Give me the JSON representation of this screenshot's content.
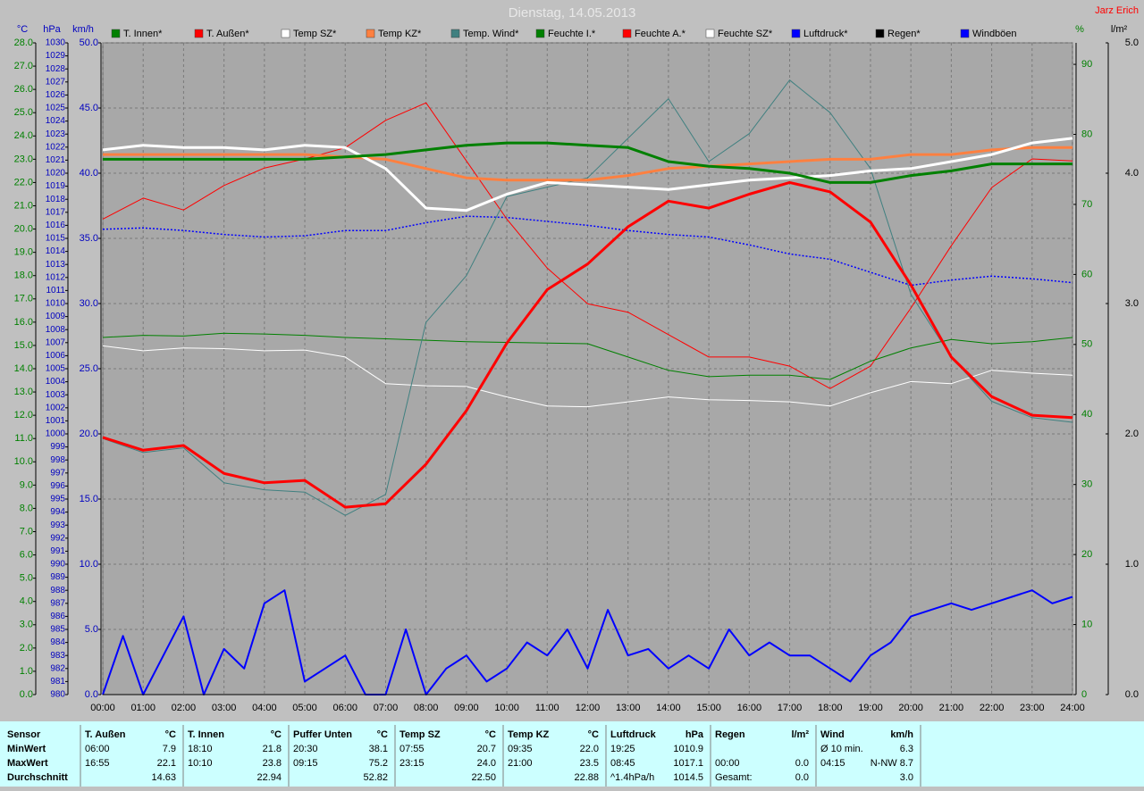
{
  "chart_data": {
    "type": "line",
    "title": "Dienstag, 14.05.2013",
    "author": "Jarz Erich",
    "x": [
      0,
      1,
      2,
      3,
      4,
      5,
      6,
      7,
      8,
      9,
      10,
      11,
      12,
      13,
      14,
      15,
      16,
      17,
      18,
      19,
      20,
      21,
      22,
      23,
      24
    ],
    "xlim": [
      0,
      24
    ],
    "xticks": [
      {
        "value": 0,
        "label": "00:00"
      },
      {
        "value": 1,
        "label": "01:00"
      },
      {
        "value": 2,
        "label": "02:00"
      },
      {
        "value": 3,
        "label": "03:00"
      },
      {
        "value": 4,
        "label": "04:00"
      },
      {
        "value": 5,
        "label": "05:00"
      },
      {
        "value": 6,
        "label": "06:00"
      },
      {
        "value": 7,
        "label": "07:00"
      },
      {
        "value": 8,
        "label": "08:00"
      },
      {
        "value": 9,
        "label": "09:00"
      },
      {
        "value": 10,
        "label": "10:00"
      },
      {
        "value": 11,
        "label": "11:00"
      },
      {
        "value": 12,
        "label": "12:00"
      },
      {
        "value": 13,
        "label": "13:00"
      },
      {
        "value": 14,
        "label": "14:00"
      },
      {
        "value": 15,
        "label": "15:00"
      },
      {
        "value": 16,
        "label": "16:00"
      },
      {
        "value": 17,
        "label": "17:00"
      },
      {
        "value": 18,
        "label": "18:00"
      },
      {
        "value": 19,
        "label": "19:00"
      },
      {
        "value": 20,
        "label": "20:00"
      },
      {
        "value": 21,
        "label": "21:00"
      },
      {
        "value": 22,
        "label": "22:00"
      },
      {
        "value": 23,
        "label": "23:00"
      },
      {
        "value": 24,
        "label": "24:00"
      }
    ],
    "ylabel": "°C",
    "ylim": [
      0,
      28
    ],
    "yticks": [
      {
        "value": 0,
        "label": "0.0"
      },
      {
        "value": 1,
        "label": "1.0"
      },
      {
        "value": 2,
        "label": "2.0"
      },
      {
        "value": 3,
        "label": "3.0"
      },
      {
        "value": 4,
        "label": "4.0"
      },
      {
        "value": 5,
        "label": "5.0"
      },
      {
        "value": 6,
        "label": "6.0"
      },
      {
        "value": 7,
        "label": "7.0"
      },
      {
        "value": 8,
        "label": "8.0"
      },
      {
        "value": 9,
        "label": "9.0"
      },
      {
        "value": 10,
        "label": "10.0"
      },
      {
        "value": 11,
        "label": "11.0"
      },
      {
        "value": 12,
        "label": "12.0"
      },
      {
        "value": 13,
        "label": "13.0"
      },
      {
        "value": 14,
        "label": "14.0"
      },
      {
        "value": 15,
        "label": "15.0"
      },
      {
        "value": 16,
        "label": "16.0"
      },
      {
        "value": 17,
        "label": "17.0"
      },
      {
        "value": 18,
        "label": "18.0"
      },
      {
        "value": 19,
        "label": "19.0"
      },
      {
        "value": 20,
        "label": "20.0"
      },
      {
        "value": 21,
        "label": "21.0"
      },
      {
        "value": 22,
        "label": "22.0"
      },
      {
        "value": 23,
        "label": "23.0"
      },
      {
        "value": 24,
        "label": "24.0"
      },
      {
        "value": 25,
        "label": "25.0"
      },
      {
        "value": 26,
        "label": "26.0"
      },
      {
        "value": 27,
        "label": "27.0"
      },
      {
        "value": 28,
        "label": "28.0"
      }
    ],
    "y2label": "hPa",
    "y2lim": [
      980,
      1030
    ],
    "y2ticks": [
      980,
      981,
      982,
      983,
      984,
      985,
      986,
      987,
      988,
      989,
      990,
      991,
      992,
      993,
      994,
      995,
      996,
      997,
      998,
      999,
      1000,
      1001,
      1002,
      1003,
      1004,
      1005,
      1006,
      1007,
      1008,
      1009,
      1010,
      1011,
      1012,
      1013,
      1014,
      1015,
      1016,
      1017,
      1018,
      1019,
      1020,
      1021,
      1022,
      1023,
      1024,
      1025,
      1026,
      1027,
      1028,
      1029,
      1030
    ],
    "y3label": "km/h",
    "y3lim": [
      0,
      50
    ],
    "y3ticks": [
      {
        "value": 0,
        "label": "0.0"
      },
      {
        "value": 5,
        "label": "5.0"
      },
      {
        "value": 10,
        "label": "10.0"
      },
      {
        "value": 15,
        "label": "15.0"
      },
      {
        "value": 20,
        "label": "20.0"
      },
      {
        "value": 25,
        "label": "25.0"
      },
      {
        "value": 30,
        "label": "30.0"
      },
      {
        "value": 35,
        "label": "35.0"
      },
      {
        "value": 40,
        "label": "40.0"
      },
      {
        "value": 45,
        "label": "45.0"
      },
      {
        "value": 50,
        "label": "50.0"
      }
    ],
    "y4label": "%",
    "y4lim": [
      0,
      93.07
    ],
    "y4ticks": [
      0,
      10,
      20,
      30,
      40,
      50,
      60,
      70,
      80,
      90
    ],
    "y5label": "l/m²",
    "y5lim": [
      0,
      5
    ],
    "y5ticks": [
      {
        "value": 0,
        "label": "0.0"
      },
      {
        "value": 1,
        "label": "1.0"
      },
      {
        "value": 2,
        "label": "2.0"
      },
      {
        "value": 3,
        "label": "3.0"
      },
      {
        "value": 4,
        "label": "4.0"
      },
      {
        "value": 5,
        "label": "5.0"
      }
    ],
    "grid": true,
    "series": [
      {
        "name": "T. Innen*",
        "color": "#008000",
        "axis": "y",
        "line_width": 3,
        "values": [
          23.0,
          23.0,
          23.0,
          23.0,
          23.0,
          23.0,
          23.1,
          23.2,
          23.4,
          23.6,
          23.7,
          23.7,
          23.6,
          23.5,
          22.9,
          22.7,
          22.6,
          22.4,
          22.0,
          22.0,
          22.3,
          22.5,
          22.8,
          22.8,
          22.8
        ]
      },
      {
        "name": "T. Außen*",
        "color": "#ff0000",
        "axis": "y",
        "line_width": 3,
        "values": [
          11.05,
          10.5,
          10.7,
          9.5,
          9.1,
          9.2,
          8.05,
          8.2,
          9.9,
          12.2,
          15.1,
          17.4,
          18.5,
          20.1,
          21.2,
          20.9,
          21.5,
          22.0,
          21.6,
          20.3,
          17.6,
          14.5,
          12.8,
          12.0,
          11.9
        ]
      },
      {
        "name": "Temp SZ*",
        "color": "#ffffff",
        "axis": "y",
        "line_width": 3,
        "values": [
          23.4,
          23.6,
          23.5,
          23.5,
          23.4,
          23.6,
          23.5,
          22.6,
          20.9,
          20.8,
          21.5,
          22.0,
          21.9,
          21.8,
          21.7,
          21.9,
          22.1,
          22.2,
          22.3,
          22.5,
          22.6,
          22.9,
          23.2,
          23.7,
          23.9
        ]
      },
      {
        "name": "Temp KZ*",
        "color": "#ff8040",
        "axis": "y",
        "line_width": 3,
        "values": [
          23.2,
          23.2,
          23.2,
          23.2,
          23.2,
          23.2,
          23.1,
          23.0,
          22.6,
          22.2,
          22.1,
          22.1,
          22.1,
          22.3,
          22.6,
          22.7,
          22.8,
          22.9,
          23.0,
          23.0,
          23.2,
          23.2,
          23.4,
          23.5,
          23.5
        ]
      },
      {
        "name": "Temp. Wind*",
        "color": "#408080",
        "axis": "y",
        "line_width": 1,
        "values": [
          11.0,
          10.4,
          10.6,
          9.1,
          8.8,
          8.7,
          7.7,
          8.6,
          16.0,
          18.0,
          21.4,
          21.8,
          22.2,
          23.9,
          25.6,
          22.9,
          24.1,
          26.4,
          25.0,
          22.6,
          17.2,
          14.5,
          12.6,
          11.9,
          11.7
        ]
      },
      {
        "name": "Feuchte I.*",
        "color": "#008000",
        "axis": "y4",
        "line_width": 1,
        "values": [
          51.0,
          51.3,
          51.2,
          51.6,
          51.5,
          51.3,
          51.0,
          50.8,
          50.6,
          50.4,
          50.3,
          50.2,
          50.1,
          48.2,
          46.3,
          45.4,
          45.6,
          45.6,
          45.0,
          47.6,
          49.5,
          50.7,
          50.1,
          50.4,
          51.0
        ]
      },
      {
        "name": "Feuchte A.*",
        "color": "#ff0000",
        "axis": "y4",
        "line_width": 1,
        "values": [
          67.9,
          70.9,
          69.2,
          72.7,
          75.2,
          76.5,
          78.1,
          82.0,
          84.5,
          76.2,
          67.9,
          60.9,
          55.8,
          54.6,
          51.4,
          48.2,
          48.2,
          46.9,
          43.7,
          46.9,
          55.2,
          64.1,
          72.4,
          76.5,
          76.2
        ]
      },
      {
        "name": "Feuchte SZ*",
        "color": "#ffffff",
        "axis": "y4",
        "line_width": 1,
        "values": [
          49.8,
          49.1,
          49.5,
          49.4,
          49.1,
          49.2,
          48.2,
          44.4,
          44.1,
          44.0,
          42.5,
          41.2,
          41.1,
          41.8,
          42.5,
          42.1,
          42.0,
          41.8,
          41.2,
          43.1,
          44.7,
          44.4,
          46.3,
          45.9,
          45.6
        ]
      },
      {
        "name": "Luftdruck*",
        "color": "#0000ff",
        "axis": "y2",
        "line_width": 1.5,
        "line_style": "dotted",
        "values": [
          1015.7,
          1015.8,
          1015.6,
          1015.3,
          1015.1,
          1015.2,
          1015.6,
          1015.6,
          1016.2,
          1016.7,
          1016.6,
          1016.3,
          1016.0,
          1015.6,
          1015.3,
          1015.1,
          1014.5,
          1013.8,
          1013.4,
          1012.4,
          1011.4,
          1011.8,
          1012.1,
          1011.9,
          1011.6
        ]
      },
      {
        "name": "Regen*",
        "color": "#000000",
        "axis": "y5",
        "line_width": 1,
        "values": [
          0,
          0,
          0,
          0,
          0,
          0,
          0,
          0,
          0,
          0,
          0,
          0,
          0,
          0,
          0,
          0,
          0,
          0,
          0,
          0,
          0,
          0,
          0,
          0,
          0
        ]
      },
      {
        "name": "Windböen",
        "color": "#0000ff",
        "axis": "y3",
        "line_width": 2,
        "x": [
          0,
          0.5,
          1,
          1.5,
          2,
          2.5,
          3,
          3.5,
          4,
          4.5,
          5,
          5.5,
          6,
          6.5,
          7,
          7.5,
          8,
          8.5,
          9,
          9.5,
          10,
          10.5,
          11,
          11.5,
          12,
          12.5,
          13,
          13.5,
          14,
          14.5,
          15,
          15.5,
          16,
          16.5,
          17,
          17.5,
          18,
          18.5,
          19,
          19.5,
          20,
          20.5,
          21,
          21.5,
          22,
          22.5,
          23,
          23.5,
          24
        ],
        "values": [
          0,
          4.5,
          0,
          3,
          6,
          0,
          3.5,
          2,
          7,
          8,
          1,
          2,
          3,
          0,
          0,
          5,
          0,
          2,
          3,
          1,
          2,
          4,
          3,
          5,
          2,
          6.5,
          3,
          3.5,
          2,
          3,
          2,
          5,
          3,
          4,
          3,
          3,
          2,
          1,
          3,
          4,
          6,
          6.5,
          7,
          6.5,
          7,
          7.5,
          8,
          7,
          7.5
        ]
      }
    ]
  },
  "stats": {
    "header": "Sensor",
    "row_labels": [
      "MinWert",
      "MaxWert",
      "Durchschnitt"
    ],
    "groups": [
      {
        "title": "T. Außen",
        "unit": "°C",
        "rows": [
          [
            "06:00",
            "7.9"
          ],
          [
            "16:55",
            "22.1"
          ],
          [
            "14.63"
          ]
        ]
      },
      {
        "title": "T. Innen",
        "unit": "°C",
        "rows": [
          [
            "18:10",
            "21.8"
          ],
          [
            "10:10",
            "23.8"
          ],
          [
            "22.94"
          ]
        ]
      },
      {
        "title": "Puffer Unten",
        "unit": "°C",
        "rows": [
          [
            "20:30",
            "38.1"
          ],
          [
            "09:15",
            "75.2"
          ],
          [
            "52.82"
          ]
        ]
      },
      {
        "title": "Temp SZ",
        "unit": "°C",
        "rows": [
          [
            "07:55",
            "20.7"
          ],
          [
            "23:15",
            "24.0"
          ],
          [
            "22.50"
          ]
        ]
      },
      {
        "title": "Temp KZ",
        "unit": "°C",
        "rows": [
          [
            "09:35",
            "22.0"
          ],
          [
            "21:00",
            "23.5"
          ],
          [
            "22.88"
          ]
        ]
      },
      {
        "title": "Luftdruck",
        "unit": "hPa",
        "rows": [
          [
            "19:25",
            "1010.9"
          ],
          [
            "08:45",
            "1017.1"
          ],
          [
            "^1.4hPa/h",
            "1014.5"
          ]
        ]
      },
      {
        "title": "Regen",
        "unit": "l/m²",
        "rows": [
          [],
          [
            "00:00",
            "0.0"
          ],
          [
            "Gesamt:",
            "0.0"
          ]
        ]
      },
      {
        "title": "Wind",
        "unit": "km/h",
        "rows": [
          [
            "Ø 10 min.",
            "6.3"
          ],
          [
            "04:15",
            "N-NW 8.7"
          ],
          [
            "3.0"
          ]
        ]
      }
    ]
  }
}
